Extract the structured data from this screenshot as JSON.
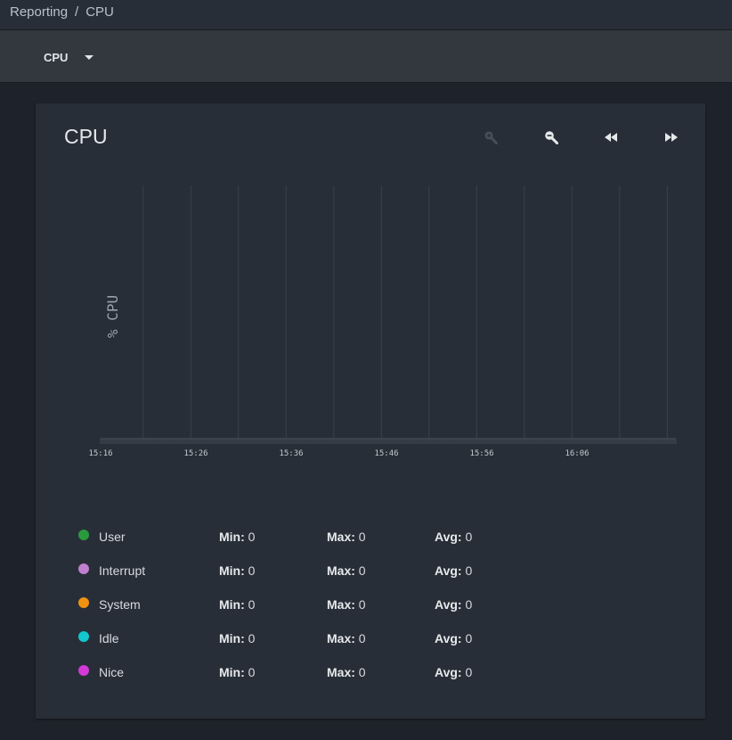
{
  "breadcrumb": {
    "parent": "Reporting",
    "separator": "/",
    "current": "CPU"
  },
  "selector": {
    "value": "CPU"
  },
  "card": {
    "title": "CPU",
    "tools": [
      "zoom-in-icon",
      "zoom-out-icon",
      "step-backward-icon",
      "step-forward-icon"
    ]
  },
  "chart_data": {
    "type": "line",
    "title": "",
    "ylabel": "% CPU",
    "xlabel": "",
    "x_tick_labels": [
      "15:16",
      "15:26",
      "15:36",
      "15:46",
      "15:56",
      "16:06"
    ],
    "x_range_minutes": [
      0,
      60
    ],
    "gridlines": [
      "15:20",
      "15:25",
      "15:30",
      "15:35",
      "15:40",
      "15:45",
      "15:50",
      "15:55",
      "16:00",
      "16:05",
      "16:10",
      "16:15"
    ],
    "series": []
  },
  "legend": {
    "min_label": "Min:",
    "max_label": "Max:",
    "avg_label": "Avg:",
    "items": [
      {
        "name": "User",
        "color": "#2a9a3e",
        "min": "0",
        "max": "0",
        "avg": "0"
      },
      {
        "name": "Interrupt",
        "color": "#c07fcf",
        "min": "0",
        "max": "0",
        "avg": "0"
      },
      {
        "name": "System",
        "color": "#f0910f",
        "min": "0",
        "max": "0",
        "avg": "0"
      },
      {
        "name": "Idle",
        "color": "#12c7cf",
        "min": "0",
        "max": "0",
        "avg": "0"
      },
      {
        "name": "Nice",
        "color": "#d43ad6",
        "min": "0",
        "max": "0",
        "avg": "0"
      }
    ]
  }
}
